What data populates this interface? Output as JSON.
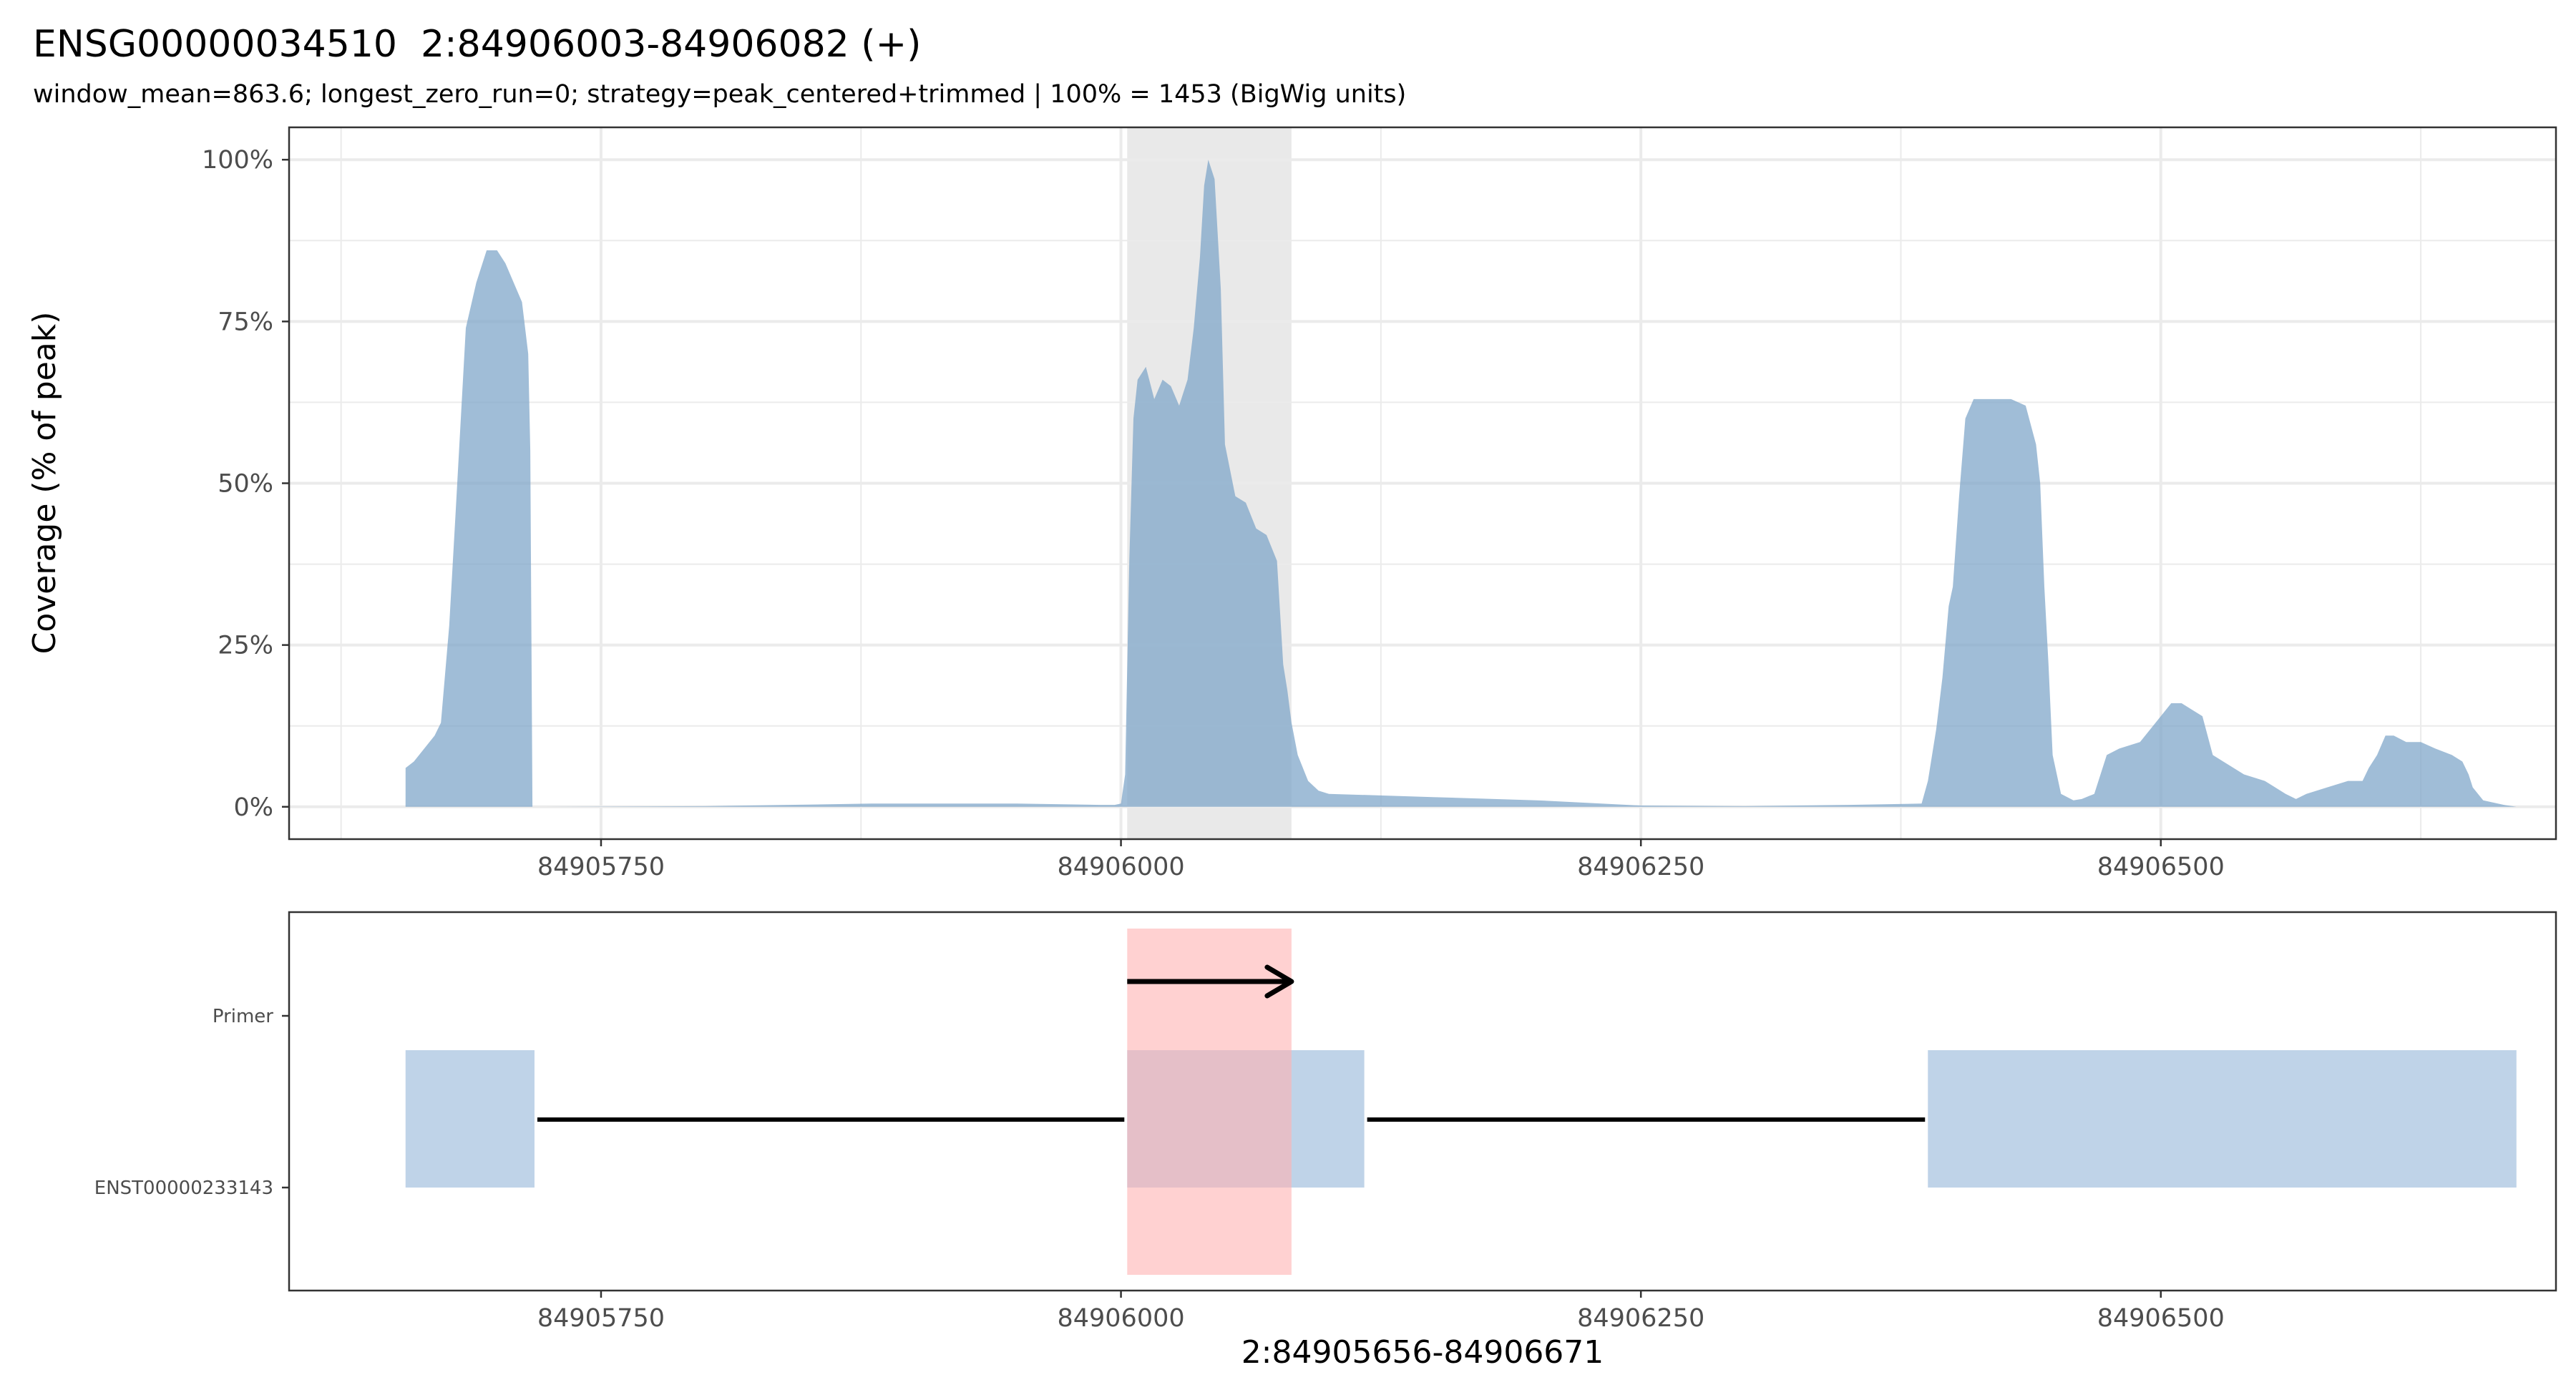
{
  "title": "ENSG00000034510  2:84906003-84906082 (+)",
  "subtitle": "window_mean=863.6; longest_zero_run=0; strategy=peak_centered+trimmed | 100% = 1453 (BigWig units)",
  "colors": {
    "coverage_fill": "#7ba3c8",
    "highlight_grey": "#e0e0e0",
    "primer_highlight": "#ffb3b3",
    "exon_fill": "#a9c4e0",
    "grid": "#ebebeb",
    "panel_border": "#333333"
  },
  "chart_data": [
    {
      "type": "area",
      "panel": "coverage",
      "ylabel": "Coverage (% of peak)",
      "xlim": [
        84905600,
        84906690
      ],
      "ylim": [
        -5,
        105
      ],
      "yticks": [
        0,
        25,
        50,
        75,
        100
      ],
      "ytick_labels": [
        "0%",
        "25%",
        "50%",
        "75%",
        "100%"
      ],
      "xticks": [
        84905750,
        84906000,
        84906250,
        84906500
      ],
      "xtick_labels": [
        "84905750",
        "84906000",
        "84906250",
        "84906500"
      ],
      "grid": true,
      "highlight": [
        84906003,
        84906082
      ],
      "x": [
        84905656,
        84905660,
        84905665,
        84905670,
        84905673,
        84905677,
        84905680,
        84905685,
        84905690,
        84905695,
        84905700,
        84905704,
        84905708,
        84905712,
        84905715,
        84905716,
        84905717,
        84905718,
        84905800,
        84905880,
        84905950,
        84905990,
        84905997,
        84906000,
        84906002,
        84906004,
        84906006,
        84906008,
        84906012,
        84906016,
        84906020,
        84906024,
        84906028,
        84906032,
        84906035,
        84906038,
        84906040,
        84906042,
        84906045,
        84906048,
        84906050,
        84906055,
        84906060,
        84906065,
        84906070,
        84906075,
        84906078,
        84906080,
        84906082,
        84906085,
        84906090,
        84906095,
        84906100,
        84906150,
        84906200,
        84906250,
        84906300,
        84906350,
        84906385,
        84906388,
        84906392,
        84906395,
        84906398,
        84906400,
        84906403,
        84906406,
        84906410,
        84906415,
        84906420,
        84906428,
        84906435,
        84906440,
        84906442,
        84906444,
        84906446,
        84906448,
        84906452,
        84906458,
        84906462,
        84906468,
        84906474,
        84906480,
        84906490,
        84906500,
        84906505,
        84906510,
        84906515,
        84906520,
        84906525,
        84906530,
        84906540,
        84906550,
        84906560,
        84906565,
        84906570,
        84906580,
        84906590,
        84906597,
        84906600,
        84906604,
        84906608,
        84906612,
        84906618,
        84906625,
        84906632,
        84906640,
        84906645,
        84906648,
        84906650,
        84906655,
        84906665,
        84906671
      ],
      "y": [
        6,
        7,
        9,
        11,
        13,
        28,
        45,
        74,
        81,
        86,
        86,
        84,
        81,
        78,
        70,
        55,
        0,
        0,
        0.1,
        0.5,
        0.5,
        0.3,
        0.3,
        0.5,
        5,
        38,
        60,
        66,
        68,
        63,
        66,
        65,
        62,
        66,
        74,
        85,
        96,
        100,
        97,
        80,
        56,
        48,
        47,
        43,
        42,
        38,
        22,
        18,
        13,
        8,
        4,
        2.5,
        2,
        1.5,
        1,
        0.2,
        0.1,
        0.3,
        0.5,
        4,
        12,
        20,
        31,
        34,
        48,
        60,
        63,
        63,
        63,
        63,
        62,
        56,
        50,
        34,
        22,
        8,
        2,
        1,
        1.2,
        2,
        8,
        9,
        10,
        14,
        16,
        16,
        15,
        14,
        8,
        7,
        5,
        4,
        2,
        1.2,
        2,
        3,
        4,
        4,
        6,
        8,
        11,
        11,
        10,
        10,
        9,
        8,
        7,
        5,
        3,
        1,
        0.3,
        0
      ]
    },
    {
      "type": "track",
      "panel": "annotation",
      "xlabel": "2:84905656-84906671",
      "xlim": [
        84905600,
        84906690
      ],
      "xticks": [
        84905750,
        84906000,
        84906250,
        84906500
      ],
      "xtick_labels": [
        "84905750",
        "84906000",
        "84906250",
        "84906500"
      ],
      "rows": [
        "Primer",
        "ENST00000233143"
      ],
      "primer": {
        "start": 84906003,
        "end": 84906082,
        "strand": "+"
      },
      "transcript": {
        "name": "ENST00000233143",
        "exons": [
          [
            84905656,
            84905718
          ],
          [
            84906003,
            84906117
          ],
          [
            84906388,
            84906671
          ]
        ],
        "introns": [
          [
            84905718,
            84906003
          ],
          [
            84906117,
            84906388
          ]
        ]
      }
    }
  ]
}
